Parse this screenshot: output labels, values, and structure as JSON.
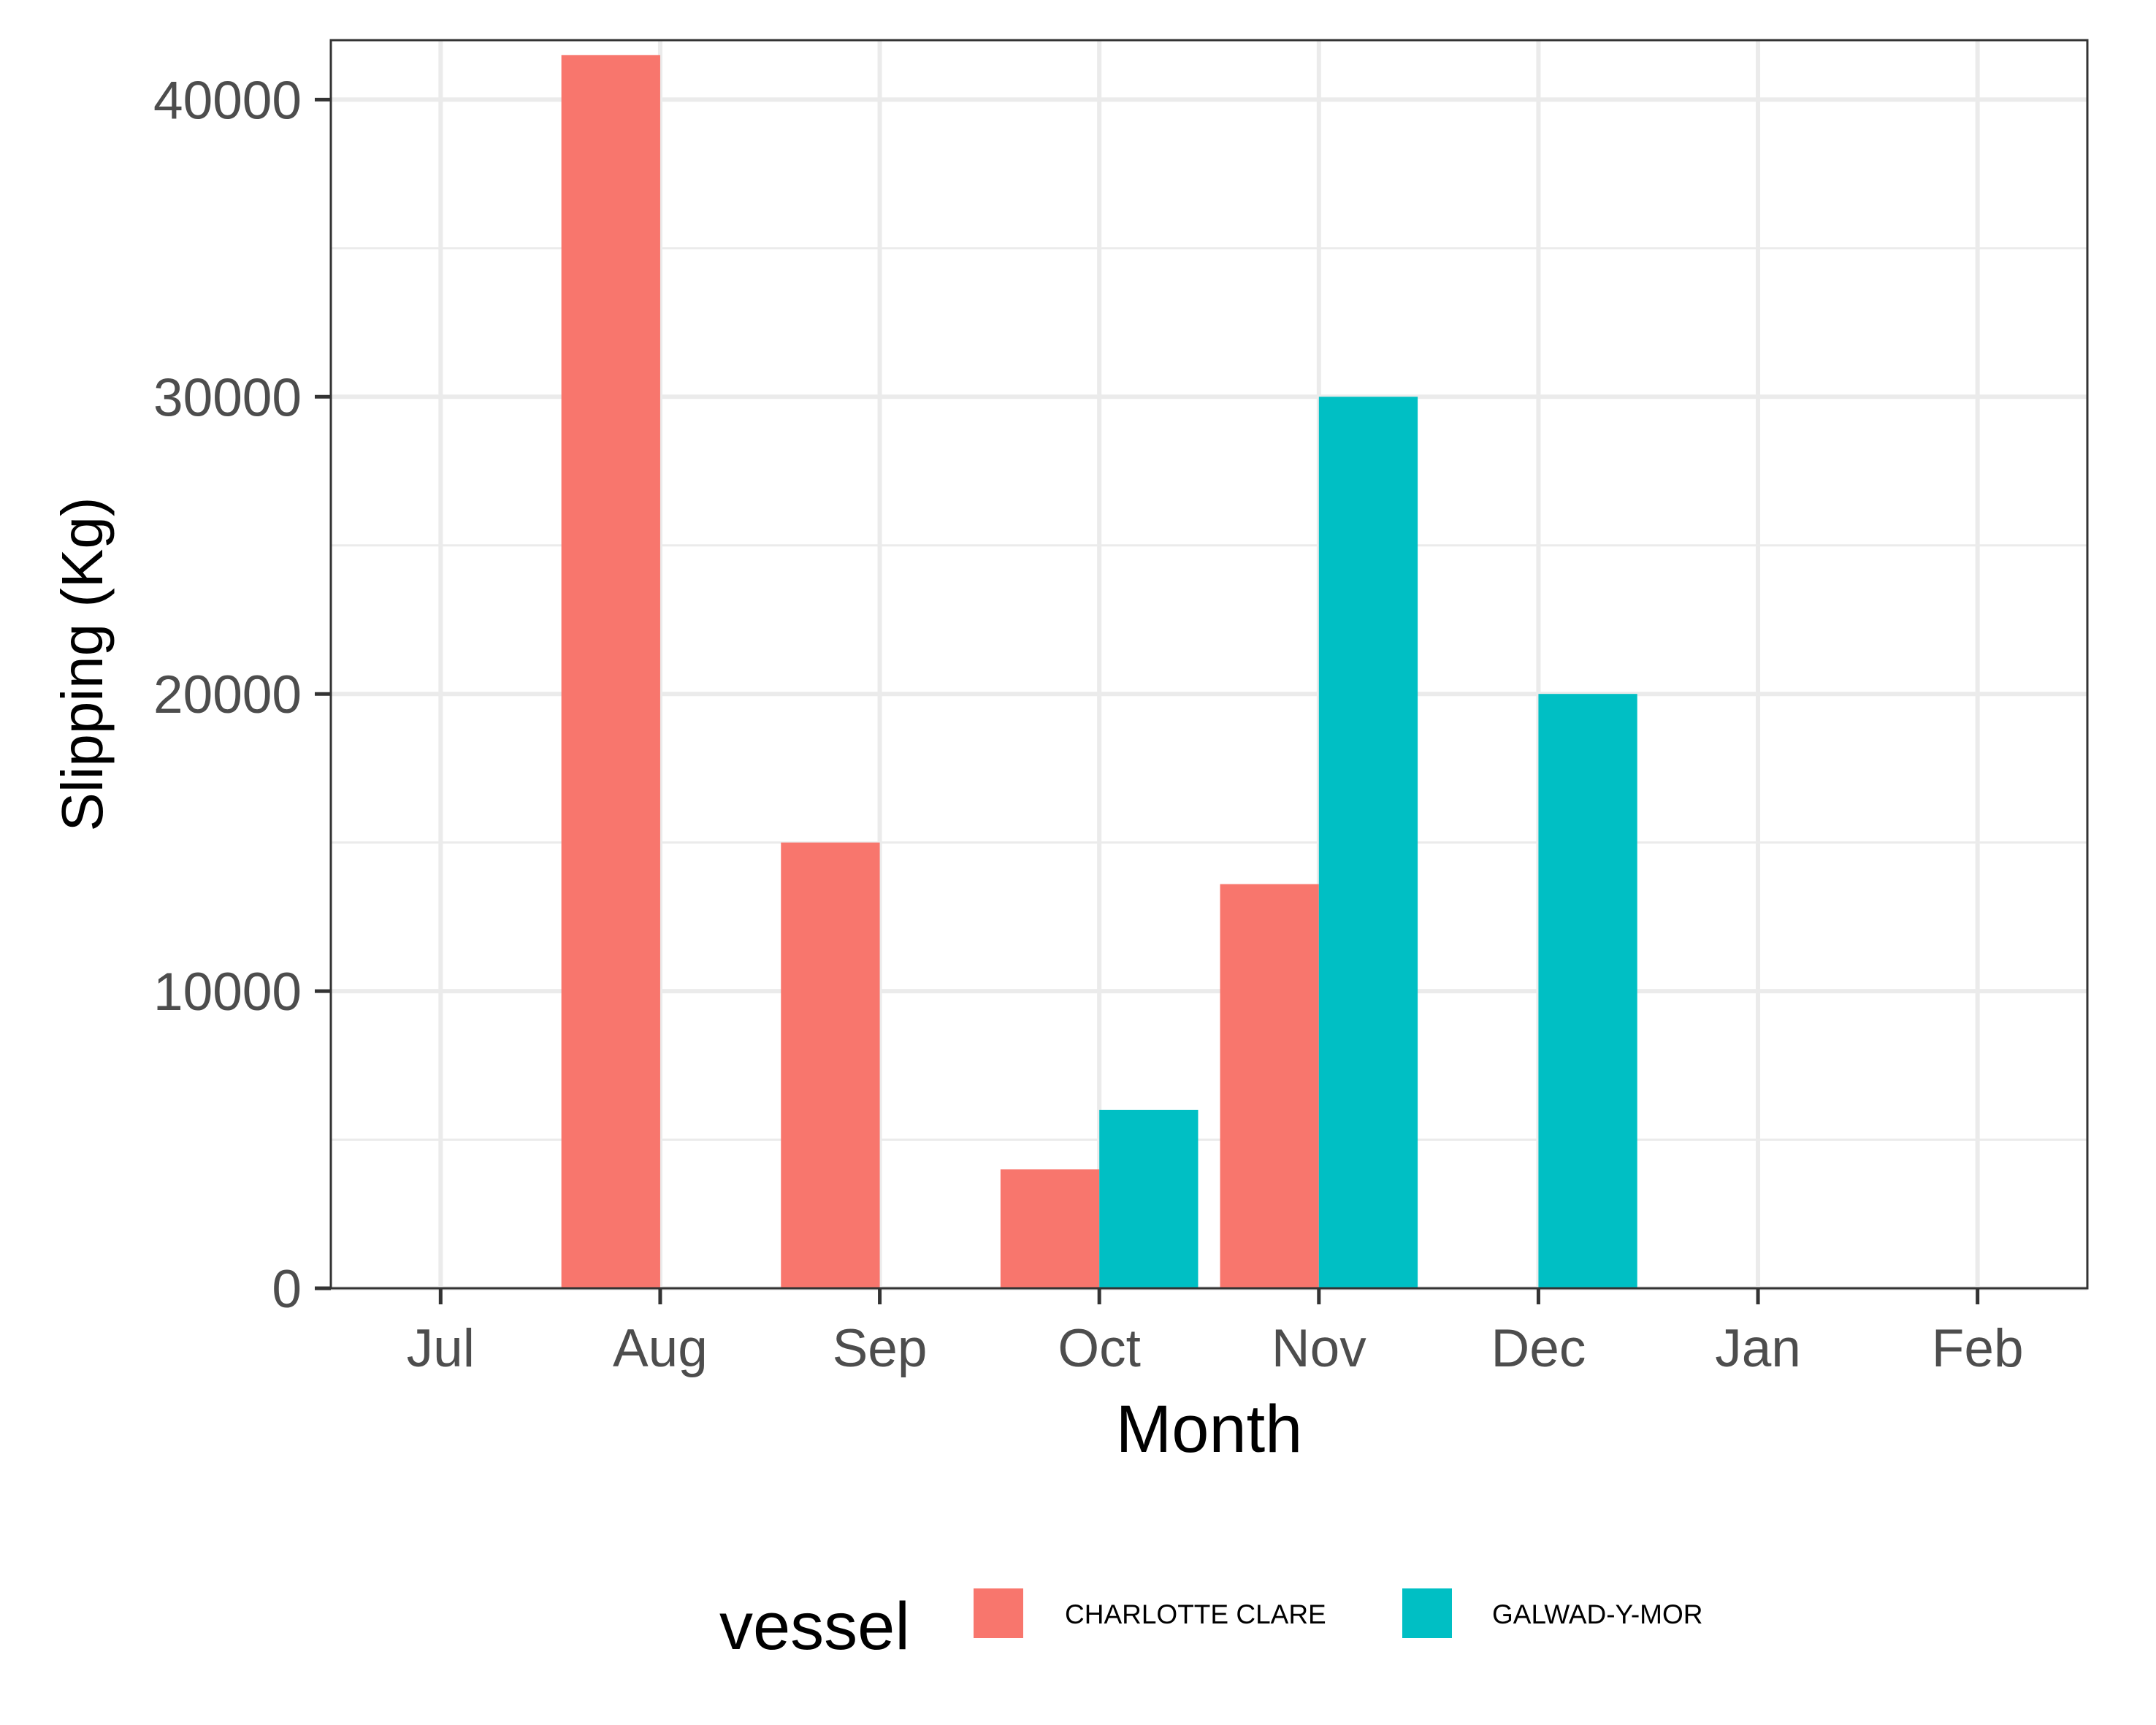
{
  "chart_data": {
    "type": "bar",
    "xlabel": "Month",
    "ylabel": "Slipping (Kg)",
    "categories": [
      "Jul",
      "Aug",
      "Sep",
      "Oct",
      "Nov",
      "Dec",
      "Jan",
      "Feb"
    ],
    "series": [
      {
        "name": "CHARLOTTE CLARE",
        "color": "#F8766D",
        "values": [
          0,
          41500,
          15000,
          4000,
          13600,
          0,
          0,
          0
        ]
      },
      {
        "name": "GALWAD-Y-MOR",
        "color": "#00BFC4",
        "values": [
          0,
          0,
          0,
          6000,
          30000,
          20000,
          0,
          0
        ]
      }
    ],
    "ylim": [
      0,
      42000
    ],
    "yticks": [
      "0",
      "10000",
      "20000",
      "30000",
      "40000"
    ],
    "ytick_values": [
      0,
      10000,
      20000,
      30000,
      40000
    ],
    "grid": true,
    "legend": {
      "title": "vessel",
      "position": "bottom"
    }
  }
}
